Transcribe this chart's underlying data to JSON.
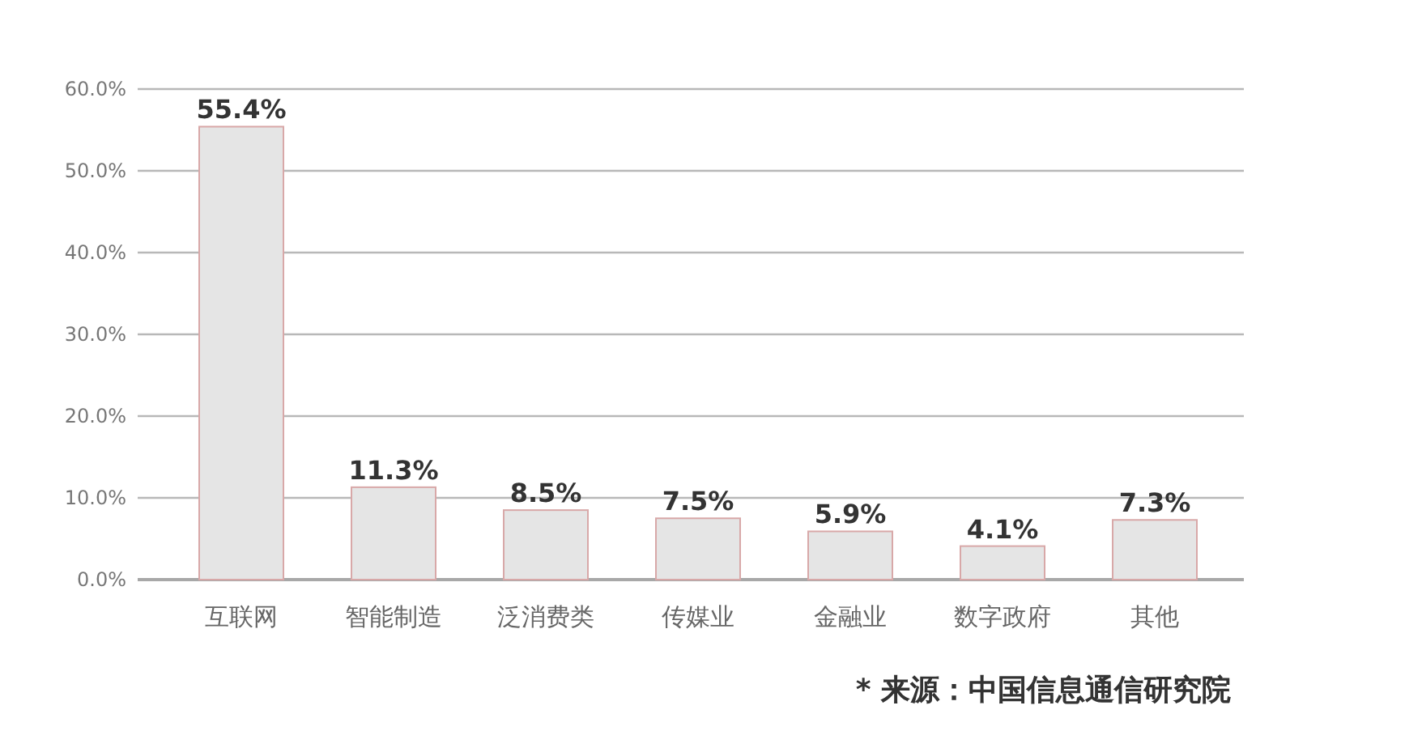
{
  "chart_data": {
    "type": "bar",
    "categories": [
      "互联网",
      "智能制造",
      "泛消费类",
      "传媒业",
      "金融业",
      "数字政府",
      "其他"
    ],
    "values": [
      55.4,
      11.3,
      8.5,
      7.5,
      5.9,
      4.1,
      7.3
    ],
    "value_labels": [
      "55.4%",
      "11.3%",
      "8.5%",
      "7.5%",
      "5.9%",
      "4.1%",
      "7.3%"
    ],
    "color": "#e5e5e5",
    "ylim": [
      0,
      60
    ],
    "yticks": [
      {
        "value": 0,
        "label": "0.0%"
      },
      {
        "value": 10,
        "label": "10.0%"
      },
      {
        "value": 20,
        "label": "20.0%"
      },
      {
        "value": 30,
        "label": "30.0%"
      },
      {
        "value": 40,
        "label": "40.0%"
      },
      {
        "value": 50,
        "label": "50.0%"
      },
      {
        "value": 60,
        "label": "60.0%"
      }
    ],
    "grid": "y",
    "annotations": [
      "* 来源：中国信息通信研究院"
    ]
  }
}
